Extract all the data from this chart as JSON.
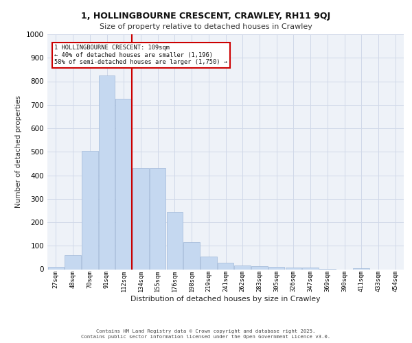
{
  "title_line1": "1, HOLLINGBOURNE CRESCENT, CRAWLEY, RH11 9QJ",
  "title_line2": "Size of property relative to detached houses in Crawley",
  "xlabel": "Distribution of detached houses by size in Crawley",
  "ylabel": "Number of detached properties",
  "categories": [
    "27sqm",
    "48sqm",
    "70sqm",
    "91sqm",
    "112sqm",
    "134sqm",
    "155sqm",
    "176sqm",
    "198sqm",
    "219sqm",
    "241sqm",
    "262sqm",
    "283sqm",
    "305sqm",
    "326sqm",
    "347sqm",
    "369sqm",
    "390sqm",
    "411sqm",
    "433sqm",
    "454sqm"
  ],
  "values": [
    10,
    60,
    505,
    825,
    725,
    430,
    430,
    245,
    115,
    55,
    28,
    15,
    12,
    10,
    8,
    8,
    2,
    0,
    5,
    0,
    0
  ],
  "bar_color": "#c5d8f0",
  "bar_edge_color": "#a0b8d8",
  "grid_color": "#d0d8e8",
  "background_color": "#eef2f8",
  "vline_x_index": 4,
  "vline_color": "#cc0000",
  "annotation_text": "1 HOLLINGBOURNE CRESCENT: 109sqm\n← 40% of detached houses are smaller (1,196)\n58% of semi-detached houses are larger (1,750) →",
  "annotation_box_color": "#ffffff",
  "annotation_box_edge_color": "#cc0000",
  "footer_text": "Contains HM Land Registry data © Crown copyright and database right 2025.\nContains public sector information licensed under the Open Government Licence v3.0.",
  "ylim": [
    0,
    1000
  ],
  "yticks": [
    0,
    100,
    200,
    300,
    400,
    500,
    600,
    700,
    800,
    900,
    1000
  ]
}
